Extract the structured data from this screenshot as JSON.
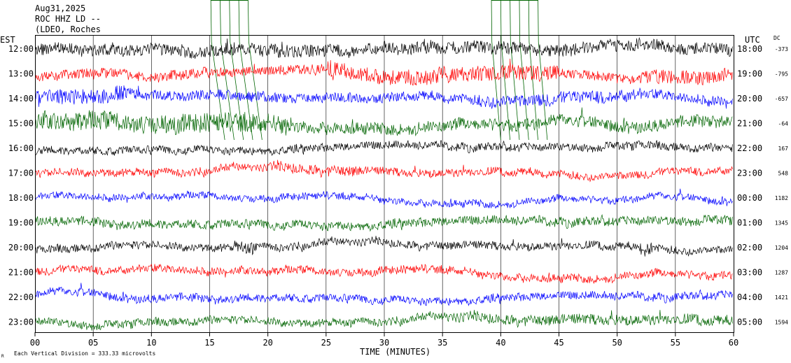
{
  "header": {
    "date": "Aug31,2025",
    "station": "ROC HHZ LD --",
    "network": "(LDEO, Roches"
  },
  "left_axis_title": "EST",
  "right_axis_title": "UTC",
  "dc_title": "DC",
  "footer": {
    "note": "Each Vertical Division =  333.33 microvolts",
    "corner_mark": "R"
  },
  "chart_data": {
    "type": "line",
    "title": "",
    "xlabel": "TIME (MINUTES)",
    "xlim": [
      0,
      60
    ],
    "x_ticks": [
      "00",
      "05",
      "10",
      "15",
      "20",
      "25",
      "30",
      "35",
      "40",
      "45",
      "50",
      "55",
      "60"
    ],
    "grid": "vertical lines every 5 minutes",
    "rows": [
      {
        "est": "12:00",
        "utc": "18:00",
        "dc": "-373",
        "color": "#000000",
        "noise": 9,
        "bursts": [
          [
            0,
            60,
            1.4
          ]
        ]
      },
      {
        "est": "13:00",
        "utc": "19:00",
        "dc": "-795",
        "color": "#ff0000",
        "noise": 10,
        "bursts": [
          [
            25,
            45,
            1.6
          ],
          [
            52,
            60,
            1.4
          ]
        ]
      },
      {
        "est": "14:00",
        "utc": "20:00",
        "dc": "-657",
        "color": "#0000ff",
        "noise": 10,
        "bursts": [
          [
            0,
            8,
            1.6
          ],
          [
            38,
            52,
            1.3
          ]
        ]
      },
      {
        "est": "15:00",
        "utc": "21:00",
        "dc": "-64",
        "color": "#006400",
        "noise": 12,
        "bursts": [
          [
            0,
            22,
            1.6
          ]
        ]
      },
      {
        "est": "16:00",
        "utc": "22:00",
        "dc": "167",
        "color": "#000000",
        "noise": 8,
        "bursts": []
      },
      {
        "est": "17:00",
        "utc": "23:00",
        "dc": "548",
        "color": "#ff0000",
        "noise": 8,
        "bursts": [
          [
            20,
            28,
            1.3
          ]
        ]
      },
      {
        "est": "18:00",
        "utc": "00:00",
        "dc": "1182",
        "color": "#0000ff",
        "noise": 7,
        "bursts": []
      },
      {
        "est": "19:00",
        "utc": "01:00",
        "dc": "1345",
        "color": "#006400",
        "noise": 9,
        "bursts": []
      },
      {
        "est": "20:00",
        "utc": "02:00",
        "dc": "1204",
        "color": "#000000",
        "noise": 8,
        "bursts": [
          [
            17,
            19,
            1.6
          ],
          [
            52,
            53,
            2.0
          ]
        ]
      },
      {
        "est": "21:00",
        "utc": "03:00",
        "dc": "1287",
        "color": "#ff0000",
        "noise": 8,
        "bursts": []
      },
      {
        "est": "22:00",
        "utc": "04:00",
        "dc": "1421",
        "color": "#0000ff",
        "noise": 8,
        "bursts": []
      },
      {
        "est": "23:00",
        "utc": "05:00",
        "dc": "1594",
        "color": "#006400",
        "noise": 8,
        "bursts": [
          [
            35,
            60,
            1.3
          ]
        ]
      }
    ]
  }
}
